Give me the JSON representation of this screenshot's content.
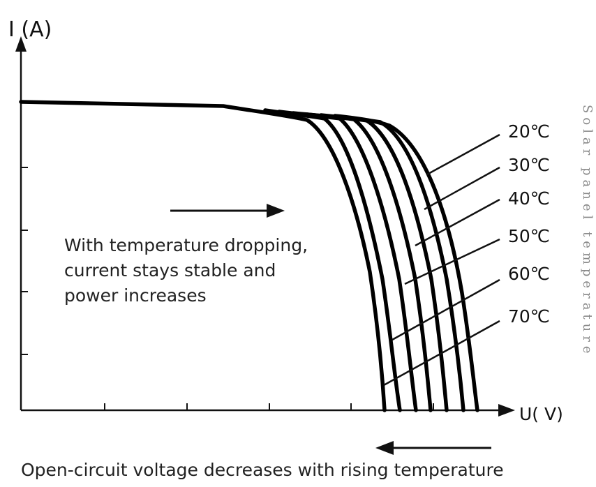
{
  "chart_data": {
    "type": "line",
    "title": "",
    "xlabel": "U( V)",
    "ylabel": "I (A)",
    "legend_title": "Solar panel temperature",
    "annotations": {
      "center": [
        "With temperature dropping,",
        "current stays stable and",
        "power increases"
      ],
      "bottom": "Open-circuit voltage decreases with rising temperature"
    },
    "series": [
      {
        "name": "20℃"
      },
      {
        "name": "30℃"
      },
      {
        "name": "40℃"
      },
      {
        "name": "50℃"
      },
      {
        "name": "60℃"
      },
      {
        "name": "70℃"
      }
    ],
    "grid": false
  },
  "colors": {
    "curve": "#000000",
    "axis": "#111111",
    "vertical_label": "#8a8a8a"
  }
}
